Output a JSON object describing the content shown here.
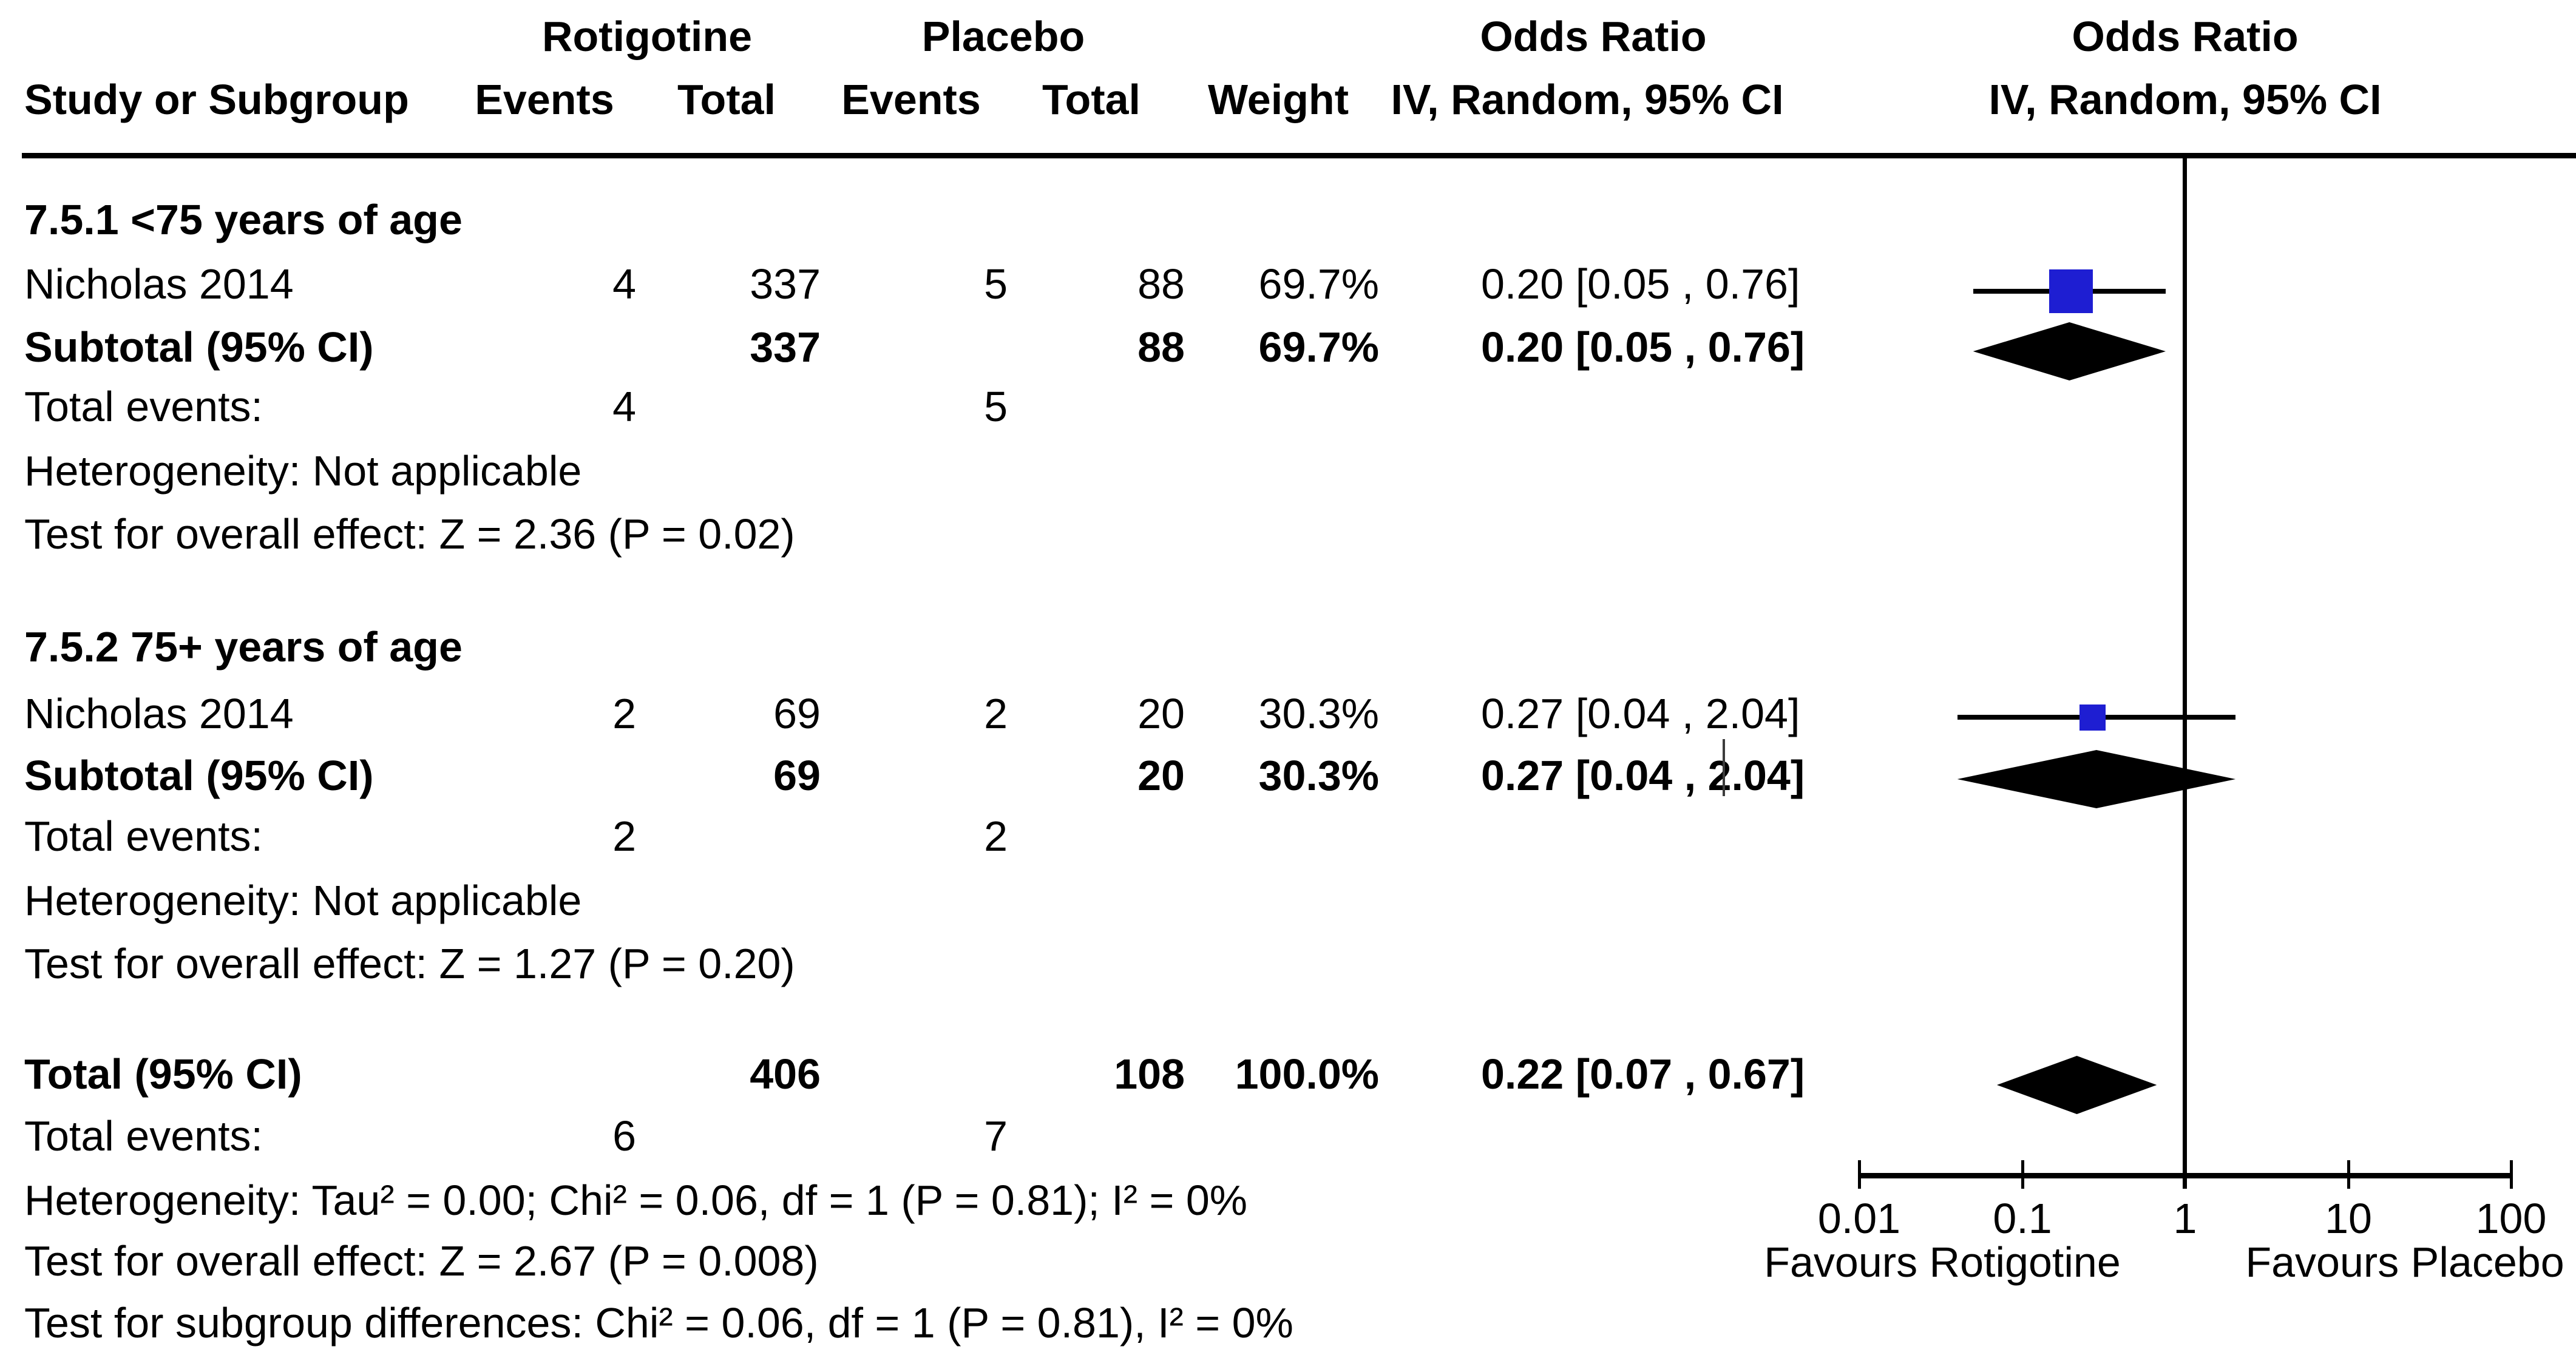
{
  "colors": {
    "square_blue": "#1E1ED2",
    "line_black": "#000000"
  },
  "columns": {
    "study": "Study or Subgroup",
    "events": "Events",
    "total": "Total",
    "weight": "Weight",
    "iv_random": "IV, Random, 95% CI",
    "group_treatment": "Rotigotine",
    "group_control": "Placebo",
    "odds_ratio": "Odds Ratio"
  },
  "sections": [
    {
      "title": "7.5.1 <75 years of age",
      "study": {
        "name": "Nicholas 2014",
        "events": "4",
        "total": "337",
        "c_events": "5",
        "c_total": "88",
        "weight": "69.7%",
        "or_ci": "0.20 [0.05 , 0.76]"
      },
      "subtotal": {
        "label": "Subtotal (95% CI)",
        "total": "337",
        "c_total": "88",
        "weight": "69.7%",
        "or_ci": "0.20 [0.05 , 0.76]"
      },
      "total_events": {
        "label": "Total events:",
        "events": "4",
        "c_events": "5"
      },
      "heterogeneity": "Heterogeneity: Not applicable",
      "overall_effect": "Test for overall effect: Z = 2.36 (P = 0.02)"
    },
    {
      "title": "7.5.2 75+ years of age",
      "study": {
        "name": "Nicholas 2014",
        "events": "2",
        "total": "69",
        "c_events": "2",
        "c_total": "20",
        "weight": "30.3%",
        "or_ci": "0.27 [0.04 , 2.04]"
      },
      "subtotal": {
        "label": "Subtotal (95% CI)",
        "total": "69",
        "c_total": "20",
        "weight": "30.3%",
        "or_ci": "0.27 [0.04 , 2.04]"
      },
      "total_events": {
        "label": "Total events:",
        "events": "2",
        "c_events": "2"
      },
      "heterogeneity": "Heterogeneity: Not applicable",
      "overall_effect": "Test for overall effect: Z = 1.27 (P = 0.20)"
    }
  ],
  "totals": {
    "label": "Total (95% CI)",
    "total": "406",
    "c_total": "108",
    "weight": "100.0%",
    "or_ci": "0.22 [0.07 , 0.67]",
    "total_events_label": "Total events:",
    "events": "6",
    "c_events": "7",
    "heterogeneity": "Heterogeneity: Tau² = 0.00; Chi² = 0.06, df = 1 (P = 0.81); I² = 0%",
    "overall_effect": "Test for overall effect: Z = 2.67 (P = 0.008)",
    "subgroup_diff": "Test for subgroup differences: Chi² = 0.06, df = 1 (P = 0.81), I² = 0%"
  },
  "axis": {
    "ticks": [
      "0.01",
      "0.1",
      "1",
      "10",
      "100"
    ],
    "favours_left": "Favours Rotigotine",
    "favours_right": "Favours Placebo"
  },
  "chart_data": {
    "type": "forest",
    "effect_measure": "Odds Ratio",
    "method": "IV, Random, 95% CI",
    "x_scale": "log",
    "x_ticks": [
      0.01,
      0.1,
      1,
      10,
      100
    ],
    "x_range": [
      0.01,
      100
    ],
    "no_effect_x": 1,
    "favours": {
      "left": "Favours Rotigotine",
      "right": "Favours Placebo"
    },
    "rows": [
      {
        "kind": "study",
        "subgroup": "7.5.1 <75 years of age",
        "name": "Nicholas 2014",
        "or": 0.2,
        "ci_low": 0.05,
        "ci_high": 0.76,
        "weight_pct": 69.7,
        "row": "study1"
      },
      {
        "kind": "pooled",
        "subgroup": "7.5.1 <75 years of age",
        "name": "Subtotal (95% CI)",
        "or": 0.2,
        "ci_low": 0.05,
        "ci_high": 0.76,
        "row": "subtotal1"
      },
      {
        "kind": "study",
        "subgroup": "7.5.2 75+ years of age",
        "name": "Nicholas 2014",
        "or": 0.27,
        "ci_low": 0.04,
        "ci_high": 2.04,
        "weight_pct": 30.3,
        "row": "study2"
      },
      {
        "kind": "pooled",
        "subgroup": "7.5.2 75+ years of age",
        "name": "Subtotal (95% CI)",
        "or": 0.27,
        "ci_low": 0.04,
        "ci_high": 2.04,
        "row": "subtotal2"
      },
      {
        "kind": "pooled",
        "subgroup": "overall",
        "name": "Total (95% CI)",
        "or": 0.22,
        "ci_low": 0.07,
        "ci_high": 0.67,
        "row": "total"
      }
    ]
  }
}
